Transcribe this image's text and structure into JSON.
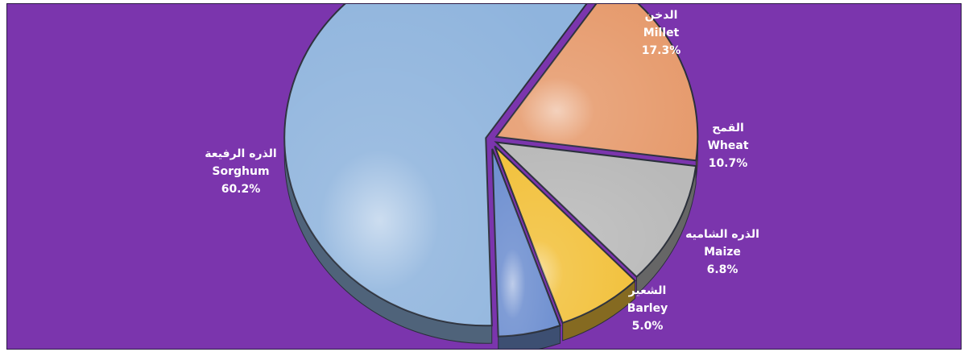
{
  "chart_data": {
    "type": "pie",
    "title": "",
    "categories": [
      "Millet",
      "Wheat",
      "Maize",
      "Barley",
      "Sorghum"
    ],
    "labels_ar": [
      "الدخن",
      "القمح",
      "الذره الشاميه",
      "الشعير",
      "الذره الرفيعة"
    ],
    "values": [
      17.3,
      10.7,
      6.8,
      5.0,
      60.2
    ],
    "value_labels": [
      "17.3%",
      "10.7%",
      "6.8%",
      "5.0%",
      "60.2%"
    ],
    "colors": [
      "#e69a6c",
      "#b9b9b9",
      "#f2c13c",
      "#6e8fd0",
      "#8fb4dd"
    ],
    "style": "3d-exploded",
    "legend": "none"
  }
}
